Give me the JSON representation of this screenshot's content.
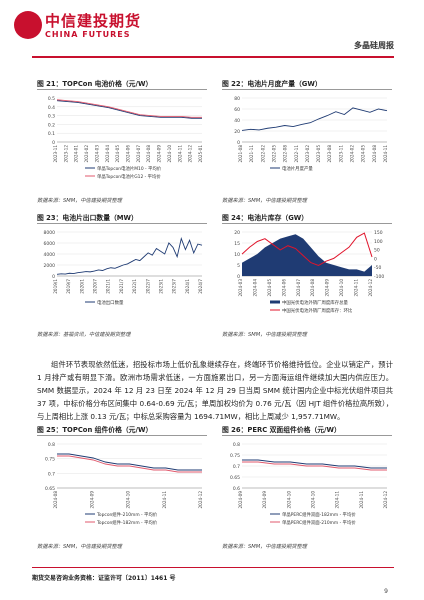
{
  "header": {
    "logo_cn": "中信建投期货",
    "logo_en": "CHINA FUTURES",
    "report_name": "多晶硅周报"
  },
  "figures": [
    {
      "id": "fig21",
      "title": "图 21：TOPCon 电池价格（元/W）",
      "source": "数据来源：SMM，中信建投期货整理",
      "chart_data": {
        "type": "line",
        "y_ticks": [
          "0.5",
          "0.4",
          "0.3",
          "0.2",
          "0.1",
          "0"
        ],
        "x_ticks": [
          "2023-11",
          "2023-12",
          "2024-01",
          "2024-02",
          "2024-03",
          "2024-04",
          "2024-05",
          "2024-06",
          "2024-07",
          "2024-08",
          "2024-09",
          "2024-10",
          "2024-11",
          "2024-12",
          "2025-01"
        ],
        "ylim": [
          0,
          0.5
        ],
        "series": [
          {
            "name": "单晶Topcon电池片M10 - 平均价",
            "color": "#1f3b73",
            "values": [
              0.47,
              0.46,
              0.45,
              0.43,
              0.41,
              0.39,
              0.36,
              0.33,
              0.3,
              0.29,
              0.28,
              0.28,
              0.28,
              0.27,
              0.27
            ]
          },
          {
            "name": "单晶Topcon电池片G12 - 平均价",
            "color": "#e05a6d",
            "values": [
              0.48,
              0.47,
              0.46,
              0.44,
              0.42,
              0.4,
              0.37,
              0.34,
              0.31,
              0.3,
              0.29,
              0.29,
              0.29,
              0.28,
              0.28
            ]
          }
        ]
      }
    },
    {
      "id": "fig22",
      "title": "图 22：电池片月度产量（GW）",
      "source": "数据来源：SMM，中信建投期货整理",
      "chart_data": {
        "type": "line",
        "y_ticks": [
          "80",
          "60",
          "40",
          "20",
          "0"
        ],
        "x_ticks": [
          "2021-08",
          "2021-11",
          "2022-02",
          "2022-05",
          "2022-08",
          "2022-11",
          "2023-02",
          "2023-05",
          "2023-08",
          "2023-11",
          "2024-02",
          "2024-05",
          "2024-08",
          "2024-11"
        ],
        "ylim": [
          0,
          80
        ],
        "series": [
          {
            "name": "电池片月度产量",
            "color": "#1f3b73",
            "values": [
              21,
              23,
              22,
              25,
              27,
              30,
              28,
              32,
              35,
              42,
              48,
              55,
              50,
              62,
              58,
              54,
              60,
              57
            ]
          }
        ]
      }
    },
    {
      "id": "fig23",
      "title": "图 23：电池片出口数量（MW）",
      "source": "数据来源：基福资讯，中信建投期货整理",
      "chart_data": {
        "type": "line",
        "y_ticks": [
          "8000",
          "6000",
          "4000",
          "2000",
          "0"
        ],
        "x_ticks": [
          "2019/1",
          "2019/7",
          "2020/1",
          "2020/7",
          "2021/1",
          "2021/7",
          "2022/1",
          "2022/7",
          "2023/1",
          "2023/7",
          "2024/1",
          "2024/7"
        ],
        "ylim": [
          0,
          8000
        ],
        "series": [
          {
            "name": "电池出口数量",
            "color": "#1f3b73",
            "values": [
              300,
              400,
              350,
              500,
              450,
              600,
              700,
              800,
              750,
              900,
              1100,
              1000,
              1300,
              1500,
              1400,
              1700,
              2000,
              2200,
              2600,
              3000,
              2800,
              3500,
              4200,
              3800,
              5000,
              4500,
              4000,
              6000,
              5200,
              3500,
              6800,
              4800,
              6500,
              4200,
              5800,
              5600
            ]
          }
        ]
      }
    },
    {
      "id": "fig24",
      "title": "图 24：电池片库存（GW）",
      "source": "数据来源：SMM，中信建投期货整理",
      "chart_data": {
        "type": "area",
        "y_ticks_left": [
          "20",
          "15",
          "10",
          "5",
          "0"
        ],
        "y_ticks_right": [
          "150",
          "100",
          "50",
          "0",
          "-50",
          "-100"
        ],
        "x_ticks": [
          "2024-03",
          "2024-04",
          "2024-05",
          "2024-06",
          "2024-07",
          "2024-08",
          "2024-09",
          "2024-10",
          "2024-11",
          "2024-12"
        ],
        "ylim": [
          0,
          20
        ],
        "series": [
          {
            "name": "中国光伏电池外销厂周度库存总量",
            "color": "#1f3b73",
            "values": [
              6,
              8,
              10,
              13,
              15,
              17,
              18,
              19,
              17,
              13,
              9,
              6,
              5,
              4,
              3,
              3,
              2,
              5
            ]
          },
          {
            "name": "中国光伏电池外销厂周度库存：环比",
            "color": "#e0142b",
            "values": [
              3,
              8,
              12,
              14,
              10,
              6,
              9,
              7,
              2,
              -3,
              -5,
              -2,
              0,
              4,
              8,
              15,
              18,
              1
            ]
          }
        ]
      }
    },
    {
      "id": "fig25",
      "title": "图 25：TOPCon 组件价格（元/W）",
      "source": "数据来源：SMM，中信建投期货整理",
      "chart_data": {
        "type": "line",
        "y_ticks": [
          "0.8",
          "0.75",
          "0.7",
          "0.65"
        ],
        "x_ticks": [
          "2024-08",
          "2024-09",
          "2024-10",
          "2024-11",
          "2024-12"
        ],
        "ylim": [
          0.6,
          0.82
        ],
        "series": [
          {
            "name": "Topcon组件-210mm - 平均价",
            "color": "#1f3b73",
            "values": [
              0.77,
              0.77,
              0.76,
              0.75,
              0.73,
              0.72,
              0.72,
              0.71,
              0.7,
              0.7,
              0.69,
              0.69,
              0.69
            ]
          },
          {
            "name": "Topcon组件-182mm - 平均价",
            "color": "#e05a6d",
            "values": [
              0.76,
              0.76,
              0.75,
              0.74,
              0.72,
              0.71,
              0.71,
              0.7,
              0.69,
              0.69,
              0.68,
              0.68,
              0.68
            ]
          }
        ]
      }
    },
    {
      "id": "fig26",
      "title": "图 26：PERC 双面组件价格（元/W）",
      "source": "数据来源：SMM，中信建投期货整理",
      "chart_data": {
        "type": "line",
        "y_ticks": [
          "0.8",
          "0.75",
          "0.7",
          "0.65",
          "0.6"
        ],
        "x_ticks": [
          "2024-09",
          "2024-09",
          "2024-10",
          "2024-10",
          "2024-11",
          "2024-11",
          "2024-12"
        ],
        "ylim": [
          0.6,
          0.82
        ],
        "series": [
          {
            "name": "单晶PERC组件双面-182mm - 平均价",
            "color": "#1f3b73",
            "values": [
              0.74,
              0.74,
              0.73,
              0.73,
              0.72,
              0.72,
              0.71,
              0.71,
              0.7,
              0.7
            ]
          },
          {
            "name": "单晶PERC组件双面-210mm - 平均价",
            "color": "#e05a6d",
            "values": [
              0.73,
              0.73,
              0.72,
              0.72,
              0.71,
              0.71,
              0.7,
              0.7,
              0.69,
              0.69
            ]
          }
        ]
      }
    }
  ],
  "paragraph": "组件环节表现依然低迷，招投标市场上低价乱象继续存在，终端环节价格维持低位。企业以销定产，预计 1 月排产或有明显下滑。欧洲市场需求低迷，一方面施累出口，另一方面海运组件继续加大国内供应压力。SMM 数据显示，2024 年 12 月 23 日至 2024 年 12 月 29 日当周 SMM 统计国内企业中标光伏组件项目共 37 项，中标价格分布区间集中 0.64-0.69 元/瓦；单周加权均价为 0.76 元/瓦（因 HJT 组件价格拉高所致），与上周相比上涨 0.13 元/瓦；中标总采购容量为 1694.71MW，相比上周减少 1,957.71MW。",
  "footer": {
    "license": "期货交易咨询业务资格：证监许可〔2011〕1461 号",
    "page": "9"
  }
}
